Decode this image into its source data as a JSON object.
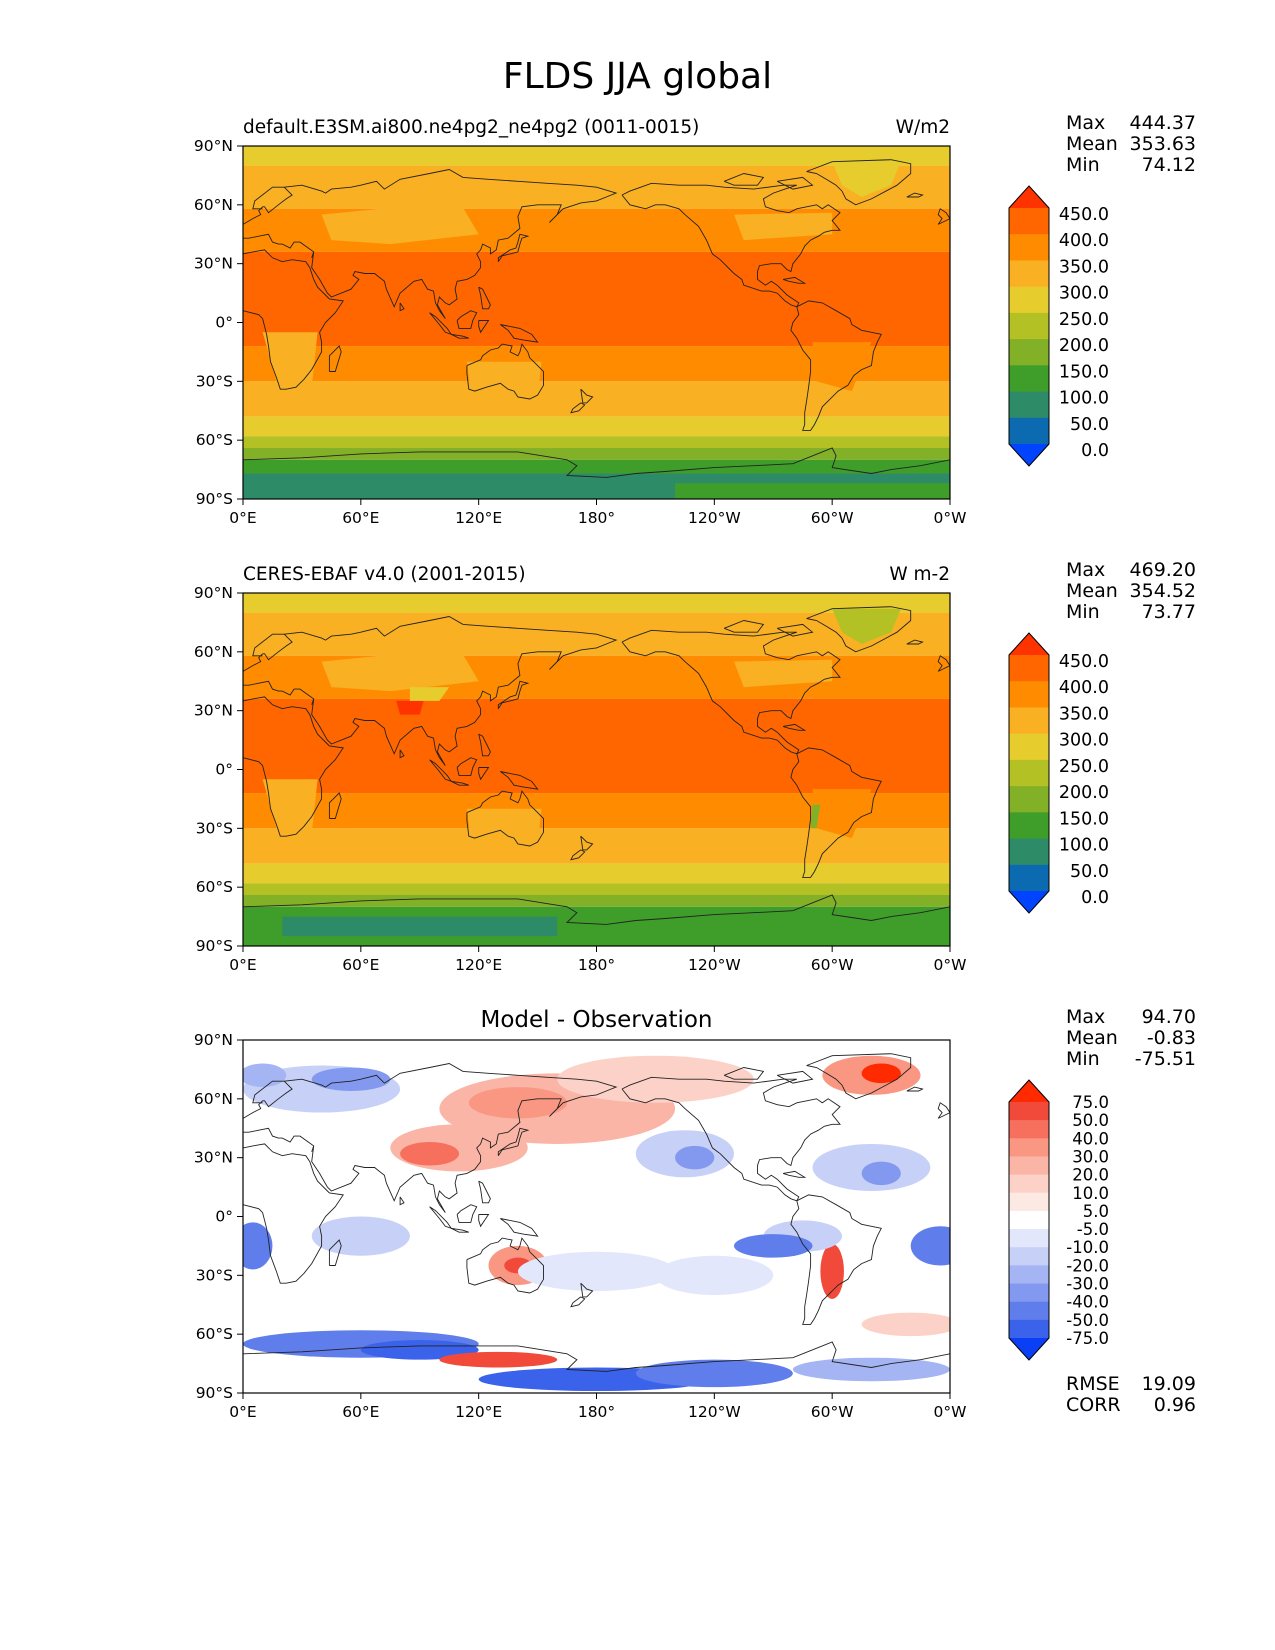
{
  "title": "FLDS JJA global",
  "panels": [
    {
      "id": "test",
      "subtitle_left": "default.E3SM.ai800.ne4pg2_ne4pg2 (0011-0015)",
      "subtitle_right": "W/m2",
      "center_title": "",
      "stats": [
        {
          "label": "Max",
          "value": "444.37"
        },
        {
          "label": "Mean",
          "value": "353.63"
        },
        {
          "label": "Min",
          "value": "74.12"
        }
      ],
      "extra_stats": [],
      "colorbar": {
        "levels": [
          "450.0",
          "400.0",
          "350.0",
          "300.0",
          "250.0",
          "200.0",
          "150.0",
          "100.0",
          "50.0",
          "0.0"
        ],
        "colors": [
          "#ff3300",
          "#ff6600",
          "#ff8c00",
          "#f9b022",
          "#e6cc2d",
          "#b4c124",
          "#82b128",
          "#3f9e2a",
          "#2e8b67",
          "#0b6ab0",
          "#0044ff"
        ]
      }
    },
    {
      "id": "reference",
      "subtitle_left": "CERES-EBAF v4.0 (2001-2015)",
      "subtitle_right": "W m-2",
      "center_title": "",
      "stats": [
        {
          "label": "Max",
          "value": "469.20"
        },
        {
          "label": "Mean",
          "value": "354.52"
        },
        {
          "label": "Min",
          "value": "73.77"
        }
      ],
      "extra_stats": [],
      "colorbar": {
        "levels": [
          "450.0",
          "400.0",
          "350.0",
          "300.0",
          "250.0",
          "200.0",
          "150.0",
          "100.0",
          "50.0",
          "0.0"
        ],
        "colors": [
          "#ff3300",
          "#ff6600",
          "#ff8c00",
          "#f9b022",
          "#e6cc2d",
          "#b4c124",
          "#82b128",
          "#3f9e2a",
          "#2e8b67",
          "#0b6ab0",
          "#0044ff"
        ]
      }
    },
    {
      "id": "diff",
      "subtitle_left": "",
      "subtitle_right": "",
      "center_title": "Model - Observation",
      "stats": [
        {
          "label": "Max",
          "value": "94.70"
        },
        {
          "label": "Mean",
          "value": "-0.83"
        },
        {
          "label": "Min",
          "value": "-75.51"
        }
      ],
      "extra_stats": [
        {
          "label": "RMSE",
          "value": "19.09"
        },
        {
          "label": "CORR",
          "value": "0.96"
        }
      ],
      "colorbar": {
        "levels": [
          "75.0",
          "50.0",
          "40.0",
          "30.0",
          "20.0",
          "10.0",
          "5.0",
          "-5.0",
          "-10.0",
          "-20.0",
          "-30.0",
          "-40.0",
          "-50.0",
          "-75.0"
        ],
        "colors": [
          "#ff2a00",
          "#f24a3a",
          "#f7705e",
          "#f99783",
          "#fbb5a6",
          "#fcd2c8",
          "#fde9e4",
          "#ffffff",
          "#e2e7fb",
          "#c7d0f7",
          "#a5b4f3",
          "#8399ef",
          "#5f7deb",
          "#3a62ea",
          "#0a3ff5"
        ]
      }
    }
  ],
  "axes": {
    "x_ticks": [
      "0°E",
      "60°E",
      "120°E",
      "180°",
      "120°W",
      "60°W",
      "0°W"
    ],
    "y_ticks": [
      "90°N",
      "60°N",
      "30°N",
      "0°",
      "30°S",
      "60°S",
      "90°S"
    ]
  },
  "chart_data": [
    {
      "type": "heatmap",
      "title": "default.E3SM.ai800.ne4pg2_ne4pg2 (0011-0015)",
      "units": "W/m2",
      "lon_range": [
        0,
        360
      ],
      "lat_range": [
        -90,
        90
      ],
      "lat_bands": [
        {
          "lat": [
            60,
            90
          ],
          "value": 300
        },
        {
          "lat": [
            30,
            60
          ],
          "value": 350
        },
        {
          "lat": [
            0,
            30
          ],
          "value": 400
        },
        {
          "lat": [
            -15,
            0
          ],
          "value": 400
        },
        {
          "lat": [
            -30,
            -15
          ],
          "value": 350
        },
        {
          "lat": [
            -55,
            -30
          ],
          "value": 350
        },
        {
          "lat": [
            -65,
            -55
          ],
          "value": 250
        },
        {
          "lat": [
            -75,
            -65
          ],
          "value": 150
        },
        {
          "lat": [
            -90,
            -75
          ],
          "value": 100
        }
      ],
      "max": 444.37,
      "mean": 353.63,
      "min": 74.12
    },
    {
      "type": "heatmap",
      "title": "CERES-EBAF v4.0 (2001-2015)",
      "units": "W m-2",
      "lon_range": [
        0,
        360
      ],
      "lat_range": [
        -90,
        90
      ],
      "lat_bands": [
        {
          "lat": [
            60,
            90
          ],
          "value": 300
        },
        {
          "lat": [
            30,
            60
          ],
          "value": 350
        },
        {
          "lat": [
            0,
            30
          ],
          "value": 400
        },
        {
          "lat": [
            -15,
            0
          ],
          "value": 400
        },
        {
          "lat": [
            -30,
            -15
          ],
          "value": 350
        },
        {
          "lat": [
            -55,
            -30
          ],
          "value": 350
        },
        {
          "lat": [
            -65,
            -55
          ],
          "value": 250
        },
        {
          "lat": [
            -75,
            -65
          ],
          "value": 150
        },
        {
          "lat": [
            -90,
            -75
          ],
          "value": 100
        }
      ],
      "max": 469.2,
      "mean": 354.52,
      "min": 73.77
    },
    {
      "type": "heatmap",
      "title": "Model - Observation",
      "lon_range": [
        0,
        360
      ],
      "lat_range": [
        -90,
        90
      ],
      "max": 94.7,
      "mean": -0.83,
      "min": -75.51,
      "rmse": 19.09,
      "corr": 0.96
    }
  ]
}
